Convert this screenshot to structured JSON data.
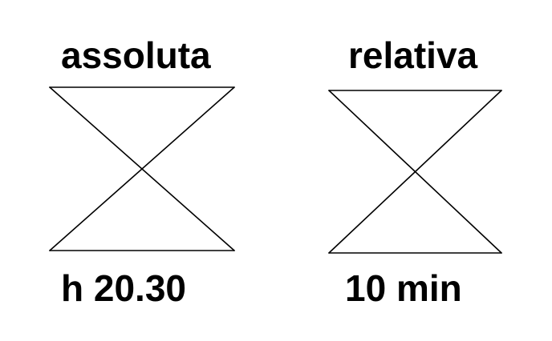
{
  "timers": [
    {
      "title": "assoluta",
      "value": "h 20.30",
      "icon": "hourglass-icon"
    },
    {
      "title": "relativa",
      "value": "10 min",
      "icon": "hourglass-icon"
    }
  ],
  "colors": {
    "stroke": "#000000",
    "text": "#000000",
    "background": "#ffffff"
  }
}
